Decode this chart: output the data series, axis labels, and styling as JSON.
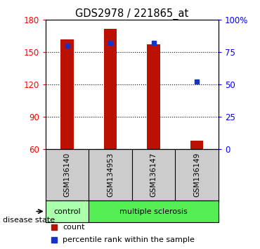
{
  "title": "GDS2978 / 221865_at",
  "samples": [
    "GSM136140",
    "GSM134953",
    "GSM136147",
    "GSM136149"
  ],
  "counts": [
    162,
    172,
    157,
    68
  ],
  "percentiles": [
    80,
    82,
    82,
    52
  ],
  "ylim_left": [
    60,
    180
  ],
  "ylim_right": [
    0,
    100
  ],
  "yticks_left": [
    60,
    90,
    120,
    150,
    180
  ],
  "yticks_right": [
    0,
    25,
    50,
    75,
    100
  ],
  "ytick_labels_right": [
    "0",
    "25",
    "50",
    "75",
    "100%"
  ],
  "bar_color": "#bb1100",
  "percentile_color": "#1133cc",
  "control_color": "#aaffaa",
  "ms_color": "#55ee55",
  "sample_label_area_color": "#cccccc",
  "bar_width": 0.3,
  "legend_count_label": "count",
  "legend_percentile_label": "percentile rank within the sample",
  "disease_label": "disease state"
}
